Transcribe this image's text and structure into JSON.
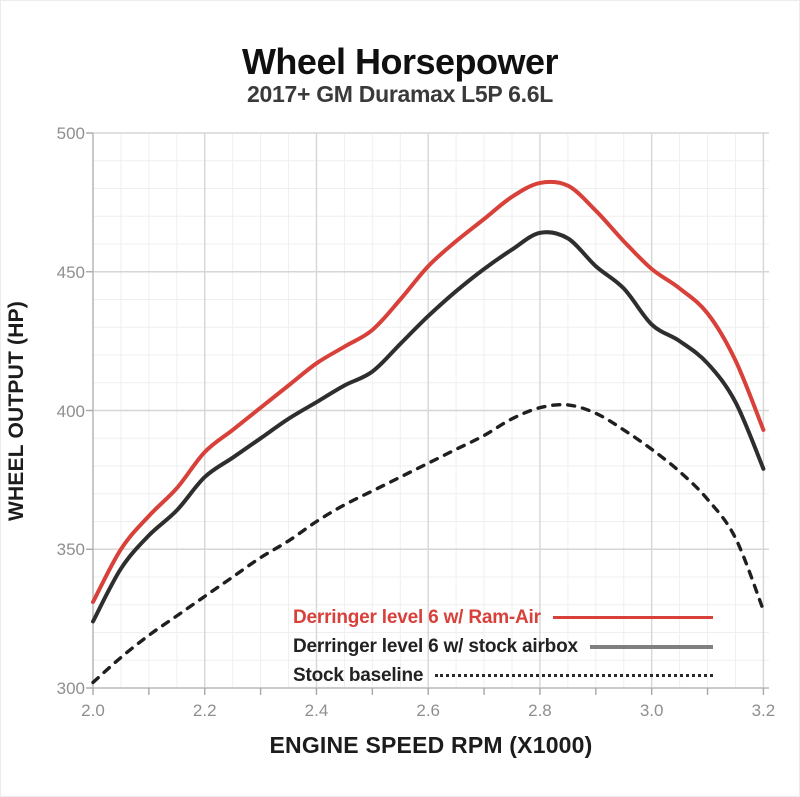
{
  "header": {
    "title": "Wheel Horsepower",
    "subtitle": "2017+ GM Duramax L5P 6.6L"
  },
  "chart_data": {
    "type": "line",
    "title": "Wheel Horsepower",
    "subtitle": "2017+ GM Duramax L5P 6.6L",
    "xlabel": "ENGINE SPEED RPM (X1000)",
    "ylabel": "WHEEL OUTPUT (HP)",
    "xlim": [
      2.0,
      3.21
    ],
    "ylim": [
      300,
      500
    ],
    "x_tick_labels": [
      "2.0",
      "2.2",
      "2.4",
      "2.6",
      "2.8",
      "3.0",
      "3.2"
    ],
    "x_ticks": [
      2.0,
      2.2,
      2.4,
      2.6,
      2.8,
      3.0,
      3.2
    ],
    "y_tick_labels": [
      "300",
      "350",
      "400",
      "450",
      "500"
    ],
    "y_ticks": [
      300,
      350,
      400,
      450,
      500
    ],
    "x_minor_step": 0.05,
    "y_minor_step": 10,
    "grid": true,
    "legend_position": "inside-bottom-right",
    "x": [
      2.0,
      2.05,
      2.1,
      2.15,
      2.2,
      2.25,
      2.3,
      2.35,
      2.4,
      2.45,
      2.5,
      2.55,
      2.6,
      2.65,
      2.7,
      2.75,
      2.8,
      2.85,
      2.9,
      2.95,
      3.0,
      3.05,
      3.1,
      3.15,
      3.2
    ],
    "series": [
      {
        "name": "Derringer level 6 w/ Ram-Air",
        "style": "solid",
        "color": "#d8403a",
        "legend_line_color": "#d8403a",
        "line_width": 4,
        "values": [
          331,
          350,
          362,
          372,
          385,
          393,
          401,
          409,
          417,
          423,
          429,
          440,
          452,
          461,
          469,
          477,
          482,
          481,
          472,
          461,
          451,
          444,
          435,
          418,
          393
        ]
      },
      {
        "name": "Derringer level 6 w/ stock airbox",
        "style": "solid",
        "color": "#2e2e2e",
        "legend_line_color": "#7f7f7f",
        "line_width": 4,
        "values": [
          324,
          343,
          355,
          364,
          376,
          383,
          390,
          397,
          403,
          409,
          414,
          424,
          434,
          443,
          451,
          458,
          464,
          462,
          452,
          444,
          431,
          425,
          417,
          403,
          379
        ]
      },
      {
        "name": "Stock baseline",
        "style": "dashed",
        "color": "#1f1f1f",
        "legend_line_color": "#2a2a2a",
        "line_width": 3.4,
        "values": [
          302,
          311,
          319,
          326,
          333,
          340,
          347,
          353,
          360,
          366,
          371,
          376,
          381,
          386,
          391,
          397,
          401,
          402,
          399,
          393,
          386,
          378,
          368,
          354,
          328
        ]
      }
    ],
    "colors": {
      "grid_major": "#d6d6d6",
      "grid_minor": "#efefef",
      "axis_line": "#bfbfbf",
      "tick_mark": "#a8a8a8",
      "tick_label": "#8f8f8f"
    }
  }
}
